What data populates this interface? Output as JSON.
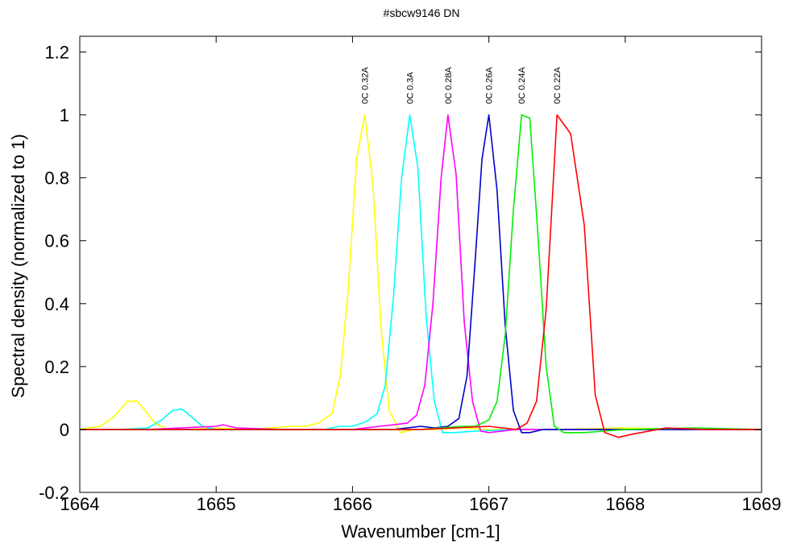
{
  "chart_data": {
    "type": "line",
    "title": "#sbcw9146 DN",
    "xlabel": "Wavenumber [cm-1]",
    "ylabel": "Spectral density (normalized to 1)",
    "xlim": [
      1664,
      1669
    ],
    "ylim": [
      -0.2,
      1.25
    ],
    "xticks": [
      1664,
      1665,
      1666,
      1667,
      1668,
      1669
    ],
    "xtick_labels": [
      "1664",
      "1665",
      "1666",
      "1667",
      "1668",
      "1669"
    ],
    "yticks": [
      -0.2,
      0,
      0.2,
      0.4,
      0.6,
      0.8,
      1,
      1.2
    ],
    "ytick_labels": [
      "-0.2",
      "0",
      "0.2",
      "0.4",
      "0.6",
      "0.8",
      "1",
      "1.2"
    ],
    "grid": false,
    "series": [
      {
        "name": "0C 0.32A",
        "color": "#ffff00",
        "x": [
          1664.0,
          1664.15,
          1664.25,
          1664.35,
          1664.42,
          1664.48,
          1664.55,
          1664.65,
          1664.8,
          1665.0,
          1665.2,
          1665.4,
          1665.55,
          1665.65,
          1665.75,
          1665.85,
          1665.91,
          1665.97,
          1666.03,
          1666.09,
          1666.15,
          1666.21,
          1666.27,
          1666.35,
          1666.45,
          1666.6,
          1666.8,
          1667.0,
          1667.5,
          1668.0,
          1668.5,
          1669.0
        ],
        "y": [
          0.0,
          0.01,
          0.04,
          0.09,
          0.09,
          0.06,
          0.02,
          0.0,
          0.0,
          0.005,
          0.0,
          0.005,
          0.01,
          0.01,
          0.02,
          0.05,
          0.17,
          0.45,
          0.86,
          1.0,
          0.78,
          0.32,
          0.06,
          -0.01,
          0.0,
          0.0,
          0.005,
          0.0,
          0.0,
          0.005,
          0.0,
          0.0
        ]
      },
      {
        "name": "0C 0.3A",
        "color": "#00ffff",
        "x": [
          1664.0,
          1664.3,
          1664.5,
          1664.6,
          1664.68,
          1664.75,
          1664.82,
          1664.9,
          1665.0,
          1665.3,
          1665.6,
          1665.8,
          1665.9,
          1666.0,
          1666.1,
          1666.18,
          1666.24,
          1666.3,
          1666.36,
          1666.42,
          1666.48,
          1666.54,
          1666.6,
          1666.66,
          1666.75,
          1666.9,
          1667.2,
          1667.6,
          1668.0,
          1668.5,
          1669.0
        ],
        "y": [
          0.0,
          0.0,
          0.005,
          0.03,
          0.06,
          0.065,
          0.04,
          0.01,
          0.0,
          0.0,
          0.0,
          0.0,
          0.01,
          0.01,
          0.025,
          0.05,
          0.14,
          0.42,
          0.8,
          1.0,
          0.83,
          0.36,
          0.09,
          -0.01,
          -0.01,
          -0.005,
          0.0,
          0.0,
          0.0,
          0.0,
          0.0
        ]
      },
      {
        "name": "0C 0.28A",
        "color": "#ff00ff",
        "x": [
          1664.0,
          1664.5,
          1665.0,
          1665.05,
          1665.15,
          1665.5,
          1666.0,
          1666.2,
          1666.3,
          1666.4,
          1666.47,
          1666.53,
          1666.59,
          1666.65,
          1666.7,
          1666.76,
          1666.82,
          1666.88,
          1666.94,
          1667.0,
          1667.2,
          1667.6,
          1668.0,
          1668.5,
          1669.0
        ],
        "y": [
          0.0,
          0.0,
          0.01,
          0.015,
          0.005,
          0.0,
          0.0,
          0.01,
          0.015,
          0.02,
          0.045,
          0.14,
          0.4,
          0.8,
          1.0,
          0.81,
          0.34,
          0.09,
          -0.005,
          -0.01,
          0.0,
          0.0,
          0.0,
          0.0,
          0.0
        ]
      },
      {
        "name": "0C 0.26A",
        "color": "#0000cc",
        "x": [
          1664.0,
          1664.5,
          1665.0,
          1665.5,
          1666.0,
          1666.3,
          1666.4,
          1666.5,
          1666.6,
          1666.7,
          1666.78,
          1666.84,
          1666.9,
          1666.95,
          1667.0,
          1667.06,
          1667.12,
          1667.18,
          1667.24,
          1667.3,
          1667.4,
          1667.6,
          1668.0,
          1668.5,
          1669.0
        ],
        "y": [
          0.0,
          0.0,
          0.0,
          0.0,
          0.0,
          0.0,
          0.005,
          0.01,
          0.005,
          0.01,
          0.035,
          0.17,
          0.54,
          0.86,
          1.0,
          0.76,
          0.33,
          0.06,
          -0.01,
          -0.01,
          0.0,
          0.0,
          0.0,
          0.0,
          0.0
        ]
      },
      {
        "name": "0C 0.24A",
        "color": "#00ee00",
        "x": [
          1664.0,
          1664.5,
          1665.0,
          1665.5,
          1666.0,
          1666.5,
          1666.8,
          1666.9,
          1667.0,
          1667.06,
          1667.12,
          1667.18,
          1667.24,
          1667.3,
          1667.36,
          1667.42,
          1667.48,
          1667.55,
          1667.7,
          1668.0,
          1668.5,
          1669.0
        ],
        "y": [
          0.0,
          0.0,
          0.0,
          0.0,
          0.0,
          0.0,
          0.01,
          0.01,
          0.03,
          0.09,
          0.3,
          0.7,
          1.0,
          0.99,
          0.62,
          0.2,
          0.01,
          -0.01,
          -0.01,
          0.0,
          0.005,
          0.0
        ]
      },
      {
        "name": "0C 0.22A",
        "color": "#ff0000",
        "x": [
          1664.0,
          1664.5,
          1665.0,
          1665.5,
          1666.0,
          1666.5,
          1667.0,
          1667.1,
          1667.2,
          1667.28,
          1667.35,
          1667.42,
          1667.5,
          1667.6,
          1667.7,
          1667.78,
          1667.85,
          1667.95,
          1668.05,
          1668.3,
          1668.6,
          1669.0
        ],
        "y": [
          0.0,
          0.0,
          0.0,
          0.0,
          0.0,
          0.0,
          0.01,
          0.005,
          0.0,
          0.02,
          0.09,
          0.38,
          1.0,
          0.94,
          0.65,
          0.11,
          -0.01,
          -0.025,
          -0.015,
          0.005,
          0.0,
          0.0
        ]
      }
    ]
  }
}
